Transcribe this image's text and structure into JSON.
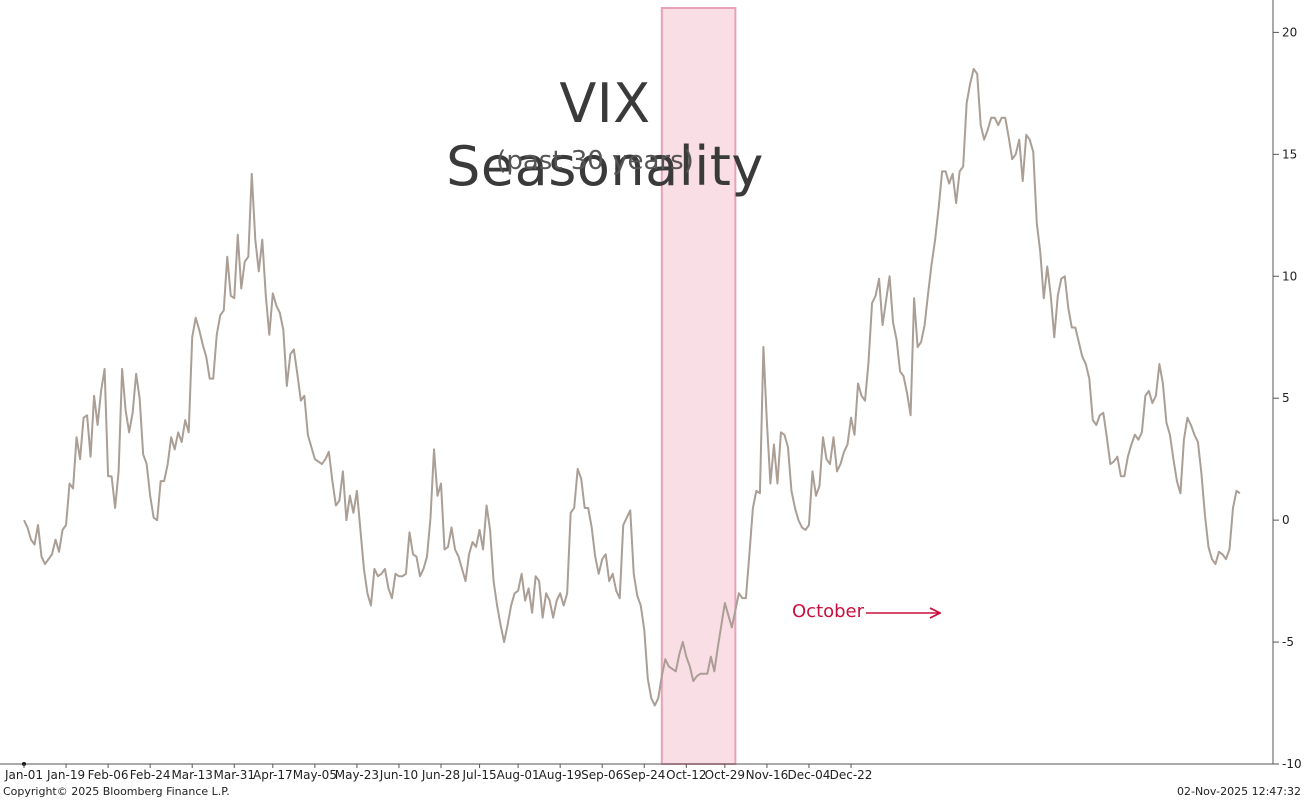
{
  "chart_data": {
    "type": "line",
    "title": "VIX Seasonality",
    "subtitle": "(past 30 years)",
    "xlabel": "",
    "ylabel": "",
    "ylim": [
      -10,
      21
    ],
    "y_ticks": [
      -10,
      -5,
      0,
      5,
      10,
      15,
      20
    ],
    "y_axis_side": "right",
    "x_ticks": [
      "Jan-01",
      "Jan-19",
      "Feb-06",
      "Feb-24",
      "Mar-13",
      "Mar-31",
      "Apr-17",
      "May-05",
      "May-23",
      "Jun-10",
      "Jun-28",
      "Jul-15",
      "Aug-01",
      "Aug-19",
      "Sep-06",
      "Sep-24",
      "Oct-12",
      "Oct-29",
      "Nov-16",
      "Dec-04",
      "Dec-22"
    ],
    "x_tick_index": [
      0,
      12,
      24,
      36,
      48,
      60,
      71,
      83,
      95,
      107,
      119,
      130,
      141,
      153,
      165,
      177,
      189,
      200,
      212,
      224,
      236
    ],
    "highlight": {
      "label": "October",
      "start_index": 182,
      "end_index": 203
    },
    "line_color": "#aa9e95",
    "highlight_color": "#f9dfe5",
    "highlight_border": "#e9a1b8",
    "annotation_color": "#c8103e",
    "series": [
      {
        "name": "VIX Seasonality",
        "values": [
          0,
          -0.3,
          -0.8,
          -1,
          -0.2,
          -1.5,
          -1.8,
          -1.6,
          -1.4,
          -0.8,
          -1.3,
          -0.4,
          -0.2,
          1.5,
          1.3,
          3.4,
          2.5,
          4.2,
          4.3,
          2.6,
          5.1,
          3.9,
          5.3,
          6.2,
          1.8,
          1.8,
          0.5,
          2,
          6.2,
          4.5,
          3.6,
          4.4,
          6,
          5,
          2.7,
          2.3,
          1,
          0.1,
          0,
          1.6,
          1.6,
          2.3,
          3.4,
          2.9,
          3.6,
          3.2,
          4.1,
          3.6,
          7.5,
          8.3,
          7.8,
          7.2,
          6.7,
          5.8,
          5.8,
          7.6,
          8.4,
          8.6,
          10.8,
          9.2,
          9.1,
          11.7,
          9.5,
          10.6,
          10.8,
          14.2,
          11.5,
          10.2,
          11.5,
          9.2,
          7.6,
          9.3,
          8.8,
          8.5,
          7.8,
          5.5,
          6.8,
          7,
          6,
          4.9,
          5.1,
          3.5,
          3,
          2.5,
          2.4,
          2.3,
          2.5,
          2.8,
          1.6,
          0.6,
          0.8,
          2,
          0,
          1,
          0.3,
          1.2,
          -0.4,
          -2,
          -3,
          -3.5,
          -2,
          -2.3,
          -2.2,
          -2,
          -2.8,
          -3.2,
          -2.2,
          -2.3,
          -2.3,
          -2.2,
          -0.5,
          -1.4,
          -1.5,
          -2.3,
          -2,
          -1.5,
          0.1,
          2.9,
          1,
          1.5,
          -1.2,
          -1.1,
          -0.3,
          -1.2,
          -1.5,
          -2,
          -2.5,
          -1.4,
          -0.9,
          -1.1,
          -0.4,
          -1.2,
          0.6,
          -0.4,
          -2.5,
          -3.5,
          -4.3,
          -5,
          -4.3,
          -3.5,
          -3,
          -2.9,
          -2.2,
          -3.3,
          -2.8,
          -3.8,
          -2.3,
          -2.5,
          -4,
          -3,
          -3.3,
          -4,
          -3.3,
          -3,
          -3.5,
          -3,
          0.3,
          0.5,
          2.1,
          1.7,
          0.5,
          0.5,
          -0.3,
          -1.5,
          -2.2,
          -1.6,
          -1.4,
          -2.5,
          -2.2,
          -2.9,
          -3.2,
          -0.2,
          0.1,
          0.4,
          -2.2,
          -3.1,
          -3.5,
          -4.5,
          -6.5,
          -7.3,
          -7.6,
          -7.3,
          -6.4,
          -5.7,
          -6,
          -6.1,
          -6.2,
          -5.5,
          -5,
          -5.6,
          -6,
          -6.6,
          -6.4,
          -6.3,
          -6.3,
          -6.3,
          -5.6,
          -6.2,
          -5.2,
          -4.3,
          -3.4,
          -3.9,
          -4.4,
          -3.7,
          -3,
          -3.2,
          -3.2,
          -1.4,
          0.5,
          1.2,
          1.1,
          7.1,
          4,
          1.5,
          3.1,
          1.5,
          3.6,
          3.5,
          3,
          1.2,
          0.5,
          0,
          -0.3,
          -0.4,
          -0.2,
          2,
          1,
          1.4,
          3.4,
          2.5,
          2.3,
          3.4,
          2,
          2.3,
          2.8,
          3.1,
          4.2,
          3.5,
          5.6,
          5.1,
          4.9,
          6.5,
          8.9,
          9.2,
          9.9,
          8,
          9,
          10,
          8.1,
          7.4,
          6.1,
          5.9,
          5.2,
          4.3,
          9.1,
          7.1,
          7.3,
          8,
          9.3,
          10.5,
          11.5,
          12.8,
          14.3,
          14.3,
          13.8,
          14.2,
          13,
          14.3,
          14.5,
          17.1,
          17.9,
          18.5,
          18.3,
          16.2,
          15.6,
          16,
          16.5,
          16.5,
          16.2,
          16.5,
          16.5,
          15.7,
          14.8,
          15,
          15.6,
          13.9,
          15.8,
          15.6,
          15.1,
          12.2,
          11,
          9.1,
          10.4,
          9.2,
          7.5,
          9.2,
          9.9,
          10,
          8.7,
          7.9,
          7.9,
          7.3,
          6.7,
          6.4,
          5.8,
          4.1,
          3.9,
          4.3,
          4.4,
          3.4,
          2.3,
          2.4,
          2.6,
          1.8,
          1.8,
          2.6,
          3.1,
          3.5,
          3.3,
          3.6,
          5.1,
          5.3,
          4.8,
          5.1,
          6.4,
          5.6,
          4,
          3.5,
          2.5,
          1.6,
          1.1,
          3.3,
          4.2,
          3.9,
          3.5,
          3.2,
          1.9,
          0.2,
          -1.1,
          -1.6,
          -1.8,
          -1.3,
          -1.4,
          -1.6,
          -1.2,
          0.5,
          1.2,
          1.1
        ]
      }
    ]
  },
  "annotation": {
    "label": "October"
  },
  "footer": {
    "copyright": "Copyright© 2025 Bloomberg Finance L.P.",
    "timestamp": "02-Nov-2025 12:47:32"
  }
}
